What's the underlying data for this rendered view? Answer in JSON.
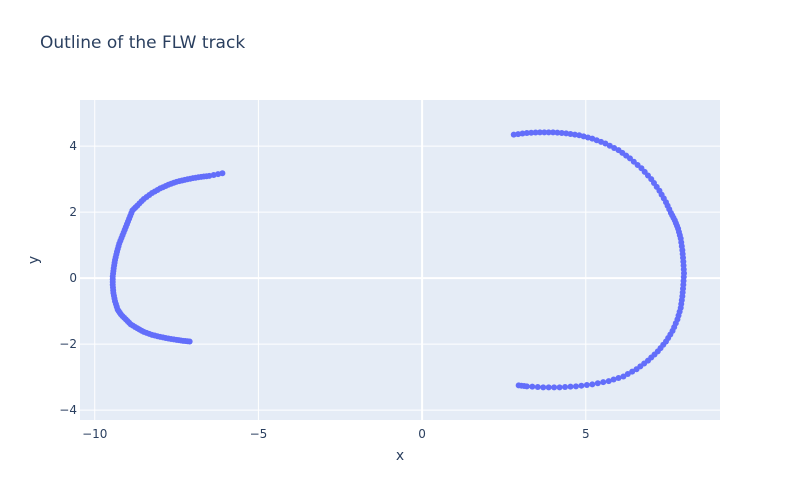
{
  "chart_data": {
    "type": "scatter",
    "title": "Outline of the FLW track",
    "xlabel": "x",
    "ylabel": "y",
    "xlim": [
      -10.45,
      9.1
    ],
    "ylim": [
      -4.3,
      5.4
    ],
    "x_ticks": [
      -10,
      -5,
      0,
      5
    ],
    "x_tick_labels": [
      "−10",
      "−5",
      "0",
      "5"
    ],
    "y_ticks": [
      -4,
      -2,
      0,
      2,
      4
    ],
    "y_tick_labels": [
      "−4",
      "−2",
      "0",
      "2",
      "4"
    ],
    "grid": true,
    "legend": "none",
    "colors": {
      "marker": "#636efa",
      "plot_bg": "#e5ecf6",
      "grid": "#ffffff",
      "text": "#2a3f5f"
    },
    "series": [
      {
        "x": [
          -6.1,
          -6.5,
          -6.75,
          -7.0,
          -7.25,
          -7.5,
          -7.75,
          -8.0,
          -8.25,
          -8.5,
          -8.7,
          -8.85,
          -8.95,
          -9.05,
          -9.15,
          -9.25,
          -9.32,
          -9.38,
          -9.42,
          -9.45,
          -9.45,
          -9.43,
          -9.38,
          -9.3,
          -9.2,
          -9.05,
          -8.9,
          -8.7,
          -8.5,
          -8.25,
          -8.0,
          -7.75,
          -7.5,
          -7.3,
          -7.1
        ],
        "y": [
          3.18,
          3.1,
          3.07,
          3.03,
          2.98,
          2.92,
          2.83,
          2.72,
          2.58,
          2.4,
          2.2,
          2.05,
          1.8,
          1.55,
          1.3,
          1.05,
          0.8,
          0.55,
          0.3,
          0.05,
          -0.2,
          -0.45,
          -0.7,
          -0.95,
          -1.1,
          -1.25,
          -1.4,
          -1.52,
          -1.63,
          -1.72,
          -1.78,
          -1.83,
          -1.87,
          -1.9,
          -1.92
        ]
      },
      {
        "x": [
          2.8,
          3.2,
          3.6,
          4.0,
          4.4,
          4.8,
          5.2,
          5.6,
          6.0,
          6.35,
          6.7,
          7.0,
          7.25,
          7.45,
          7.6,
          7.72,
          7.82,
          7.9,
          7.95,
          7.98,
          8.0,
          7.98,
          7.95,
          7.9,
          7.8,
          7.65,
          7.45,
          7.2,
          6.9,
          6.55,
          6.15,
          5.7,
          5.2,
          4.7,
          4.2,
          3.7,
          3.2,
          2.95
        ],
        "y": [
          4.35,
          4.4,
          4.42,
          4.42,
          4.39,
          4.33,
          4.23,
          4.08,
          3.88,
          3.63,
          3.33,
          3.0,
          2.65,
          2.3,
          1.98,
          1.75,
          1.5,
          1.2,
          0.85,
          0.5,
          0.15,
          -0.2,
          -0.55,
          -0.9,
          -1.25,
          -1.6,
          -1.92,
          -2.22,
          -2.5,
          -2.76,
          -2.98,
          -3.12,
          -3.22,
          -3.28,
          -3.31,
          -3.31,
          -3.28,
          -3.25
        ]
      }
    ]
  }
}
